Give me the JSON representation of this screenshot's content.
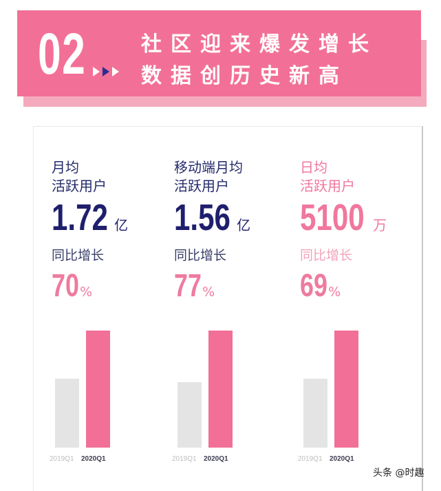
{
  "header": {
    "number": "02",
    "title_line1": "社区迎来爆发增长",
    "title_line2": "数据创历史新高",
    "colors": {
      "banner": "#f27097",
      "arrow_accent": "#2a2f8f"
    }
  },
  "metrics": [
    {
      "label_line1": "月均",
      "label_line2": "活跃用户",
      "value": "1.72",
      "unit": "亿",
      "growth_label": "同比增长",
      "growth": "70",
      "growth_unit": "%"
    },
    {
      "label_line1": "移动端月均",
      "label_line2": "活跃用户",
      "value": "1.56",
      "unit": "亿",
      "growth_label": "同比增长",
      "growth": "77",
      "growth_unit": "%"
    },
    {
      "label_line1": "日均",
      "label_line2": "活跃用户",
      "value": "5100",
      "unit": "万",
      "growth_label": "同比增长",
      "growth": "69",
      "growth_unit": "%"
    }
  ],
  "chart_data": {
    "type": "bar",
    "categories": [
      "2019Q1",
      "2020Q1"
    ],
    "note_units": "relative bar height (2020Q1 = 100)",
    "groups": [
      {
        "values": [
          59,
          100
        ]
      },
      {
        "values": [
          56,
          100
        ]
      },
      {
        "values": [
          59,
          100
        ]
      }
    ],
    "colors": {
      "2019Q1": "#e4e4e4",
      "2020Q1": "#f27097"
    }
  },
  "watermark": "头条 @时趣"
}
